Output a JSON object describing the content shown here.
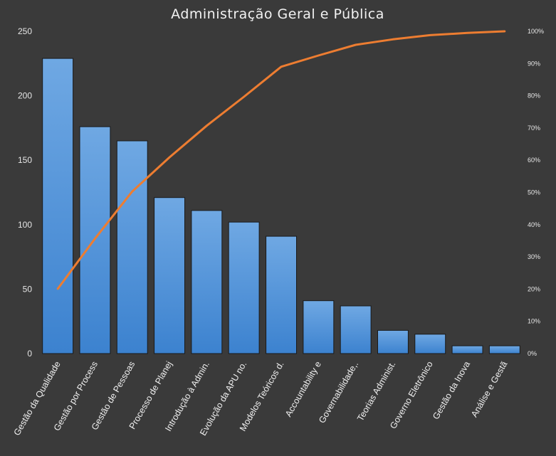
{
  "chart_data": {
    "type": "bar",
    "title": "Administração Geral e Pública",
    "categories": [
      "Gestão da Qualidade",
      "Gestão por Process",
      "Gestão de Pessoas",
      "Processo de Planej",
      "Introdução à Admin.",
      "Evolução da APU no.",
      "Modelos Teóricos d.",
      "Accountability e",
      "Governabilidade,.",
      "Teorias Administ.",
      "Governo Eletrônico",
      "Gestão da Inova",
      "Análise e Gestã"
    ],
    "series": [
      {
        "type": "bar",
        "values": [
          229,
          176,
          165,
          121,
          111,
          102,
          91,
          41,
          37,
          18,
          15,
          6,
          6
        ],
        "color": "#4a90d9"
      },
      {
        "type": "line",
        "axis": "right",
        "values": [
          20.1,
          35.7,
          50.3,
          60.9,
          70.7,
          79.7,
          89.0,
          92.5,
          95.8,
          97.5,
          98.8,
          99.5,
          100
        ],
        "color": "#ed7d31"
      }
    ],
    "ylim": [
      0,
      250
    ],
    "yticks": [
      "0",
      "50",
      "100",
      "150",
      "200",
      "250"
    ],
    "y2lim": [
      0,
      100
    ],
    "y2ticks": [
      "0%",
      "10%",
      "20%",
      "30%",
      "40%",
      "50%",
      "60%",
      "70%",
      "80%",
      "90%",
      "100%"
    ],
    "grid": false,
    "legend": "none"
  }
}
